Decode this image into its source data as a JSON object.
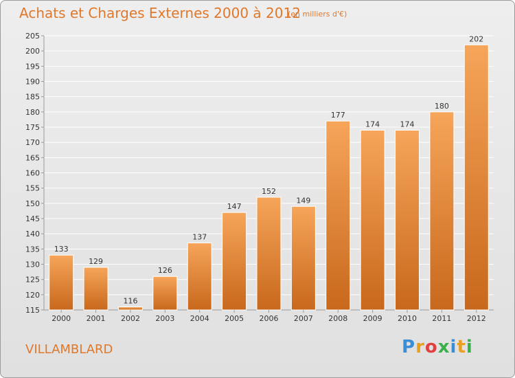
{
  "header": {
    "title": "Achats et Charges Externes 2000 à 2012",
    "subtitle": "(en milliers d'€)"
  },
  "footer": {
    "commune": "VILLAMBLARD",
    "brand_letters": [
      "P",
      "r",
      "o",
      "x",
      "i",
      "t",
      "i"
    ],
    "brand_colors": [
      "#3a8ed6",
      "#e8a020",
      "#e04040",
      "#3ab04a",
      "#3a8ed6",
      "#e8a020",
      "#3ab04a"
    ]
  },
  "chart_data": {
    "type": "bar",
    "title": "Achats et Charges Externes 2000 à 2012",
    "subtitle": "(en milliers d'€)",
    "categories": [
      "2000",
      "2001",
      "2002",
      "2003",
      "2004",
      "2005",
      "2006",
      "2007",
      "2008",
      "2009",
      "2010",
      "2011",
      "2012"
    ],
    "values": [
      133,
      129,
      116,
      126,
      137,
      147,
      152,
      149,
      177,
      174,
      174,
      180,
      202
    ],
    "ylim": [
      115,
      205
    ],
    "yticks": [
      115,
      120,
      125,
      130,
      135,
      140,
      145,
      150,
      155,
      160,
      165,
      170,
      175,
      180,
      185,
      190,
      195,
      200,
      205
    ],
    "grid": true,
    "bar_color_top": "#f6a55a",
    "bar_color_bottom": "#c8681c",
    "grid_color": "#ffffff",
    "xlabel": "",
    "ylabel": ""
  }
}
